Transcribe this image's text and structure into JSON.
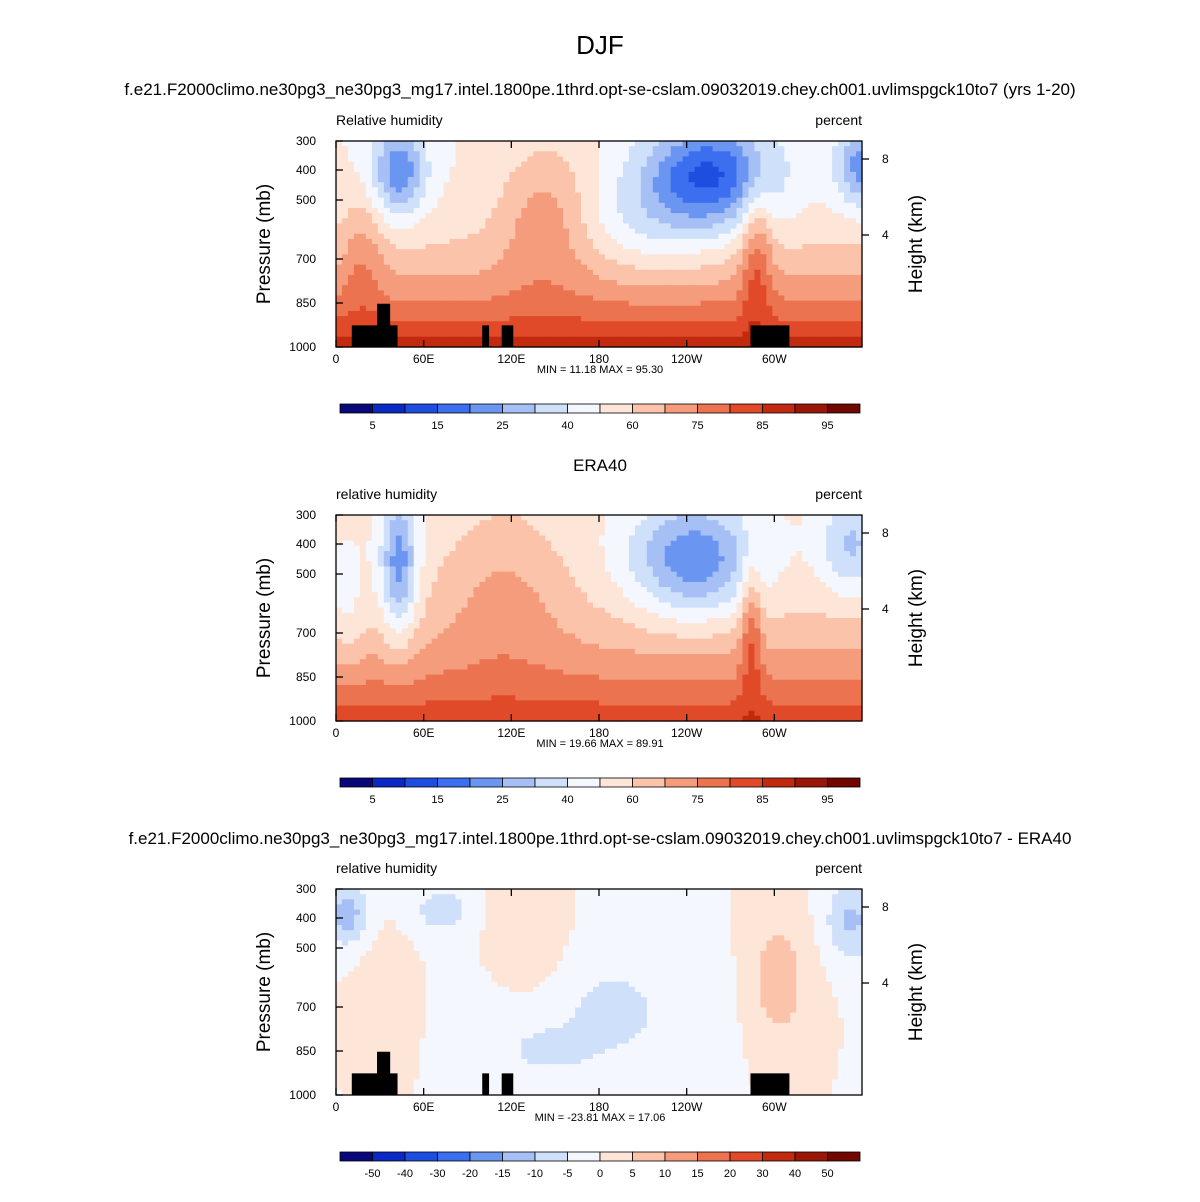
{
  "figure": {
    "title": "DJF"
  },
  "colors": {
    "abs_scale": [
      "#08087a",
      "#0a28c4",
      "#1e4ee0",
      "#3c6ef0",
      "#6a96f2",
      "#a6c0f6",
      "#cfe0fa",
      "#f4f8fe",
      "#fde6d8",
      "#fbc4aa",
      "#f49c7c",
      "#ec7350",
      "#e04a28",
      "#c22a10",
      "#9a1606",
      "#700800"
    ],
    "diff_scale": [
      "#08087a",
      "#0a28c4",
      "#1e4ee0",
      "#3c6ef0",
      "#6a96f2",
      "#a6c0f6",
      "#cfe0fa",
      "#f4f8fe",
      "#fde6d8",
      "#fbc4aa",
      "#f49c7c",
      "#ec7350",
      "#e04a28",
      "#c22a10",
      "#9a1606",
      "#700800"
    ],
    "topography": "#000000"
  },
  "chart_data": [
    {
      "type": "heatmap",
      "title": "f.e21.F2000climo.ne30pg3_ne30pg3_mg17.intel.1800pe.1thrd.opt-se-cslam.09032019.chey.ch001.uvlimspgck10to7 (yrs 1-20)",
      "left_label": "Relative humidity",
      "right_label": "percent",
      "ylabel": "Pressure (mb)",
      "y2label": "Height (km)",
      "x_ticks": [
        "0",
        "60E",
        "120E",
        "180",
        "120W",
        "60W"
      ],
      "y_ticks": [
        "300",
        "400",
        "500",
        "700",
        "850",
        "1000"
      ],
      "y2_ticks": [
        "8",
        "4"
      ],
      "stats": "MIN =  11.18  MAX =  95.30",
      "min": 11.18,
      "max": 95.3,
      "colorbar_labels": [
        "5",
        "15",
        "25",
        "40",
        "60",
        "75",
        "85",
        "95"
      ],
      "colorbar_levels": [
        5,
        10,
        15,
        20,
        25,
        30,
        40,
        50,
        60,
        65,
        75,
        80,
        85,
        90,
        95
      ],
      "ylim": [
        1000,
        300
      ],
      "xlim": [
        0,
        360
      ]
    },
    {
      "type": "heatmap",
      "title": "ERA40",
      "left_label": "relative humidity",
      "right_label": "percent",
      "ylabel": "Pressure (mb)",
      "y2label": "Height (km)",
      "x_ticks": [
        "0",
        "60E",
        "120E",
        "180",
        "120W",
        "60W"
      ],
      "y_ticks": [
        "300",
        "400",
        "500",
        "700",
        "850",
        "1000"
      ],
      "y2_ticks": [
        "8",
        "4"
      ],
      "stats": "MIN =  19.66  MAX =  89.91",
      "min": 19.66,
      "max": 89.91,
      "colorbar_labels": [
        "5",
        "15",
        "25",
        "40",
        "60",
        "75",
        "85",
        "95"
      ],
      "colorbar_levels": [
        5,
        10,
        15,
        20,
        25,
        30,
        40,
        50,
        60,
        65,
        75,
        80,
        85,
        90,
        95
      ],
      "ylim": [
        1000,
        300
      ],
      "xlim": [
        0,
        360
      ]
    },
    {
      "type": "heatmap",
      "title": "f.e21.F2000climo.ne30pg3_ne30pg3_mg17.intel.1800pe.1thrd.opt-se-cslam.09032019.chey.ch001.uvlimspgck10to7 - ERA40",
      "left_label": "relative humidity",
      "right_label": "percent",
      "ylabel": "Pressure (mb)",
      "y2label": "Height (km)",
      "x_ticks": [
        "0",
        "60E",
        "120E",
        "180",
        "120W",
        "60W"
      ],
      "y_ticks": [
        "300",
        "400",
        "500",
        "700",
        "850",
        "1000"
      ],
      "y2_ticks": [
        "8",
        "4"
      ],
      "stats": "MIN = -23.81  MAX =  17.06",
      "min": -23.81,
      "max": 17.06,
      "colorbar_labels": [
        "-50",
        "-40",
        "-30",
        "-20",
        "-15",
        "-10",
        "-5",
        "0",
        "5",
        "10",
        "15",
        "20",
        "30",
        "40",
        "50"
      ],
      "colorbar_levels": [
        -50,
        -40,
        -30,
        -20,
        -15,
        -10,
        -5,
        0,
        5,
        10,
        15,
        20,
        30,
        40,
        50
      ],
      "ylim": [
        1000,
        300
      ],
      "xlim": [
        0,
        360
      ]
    }
  ]
}
